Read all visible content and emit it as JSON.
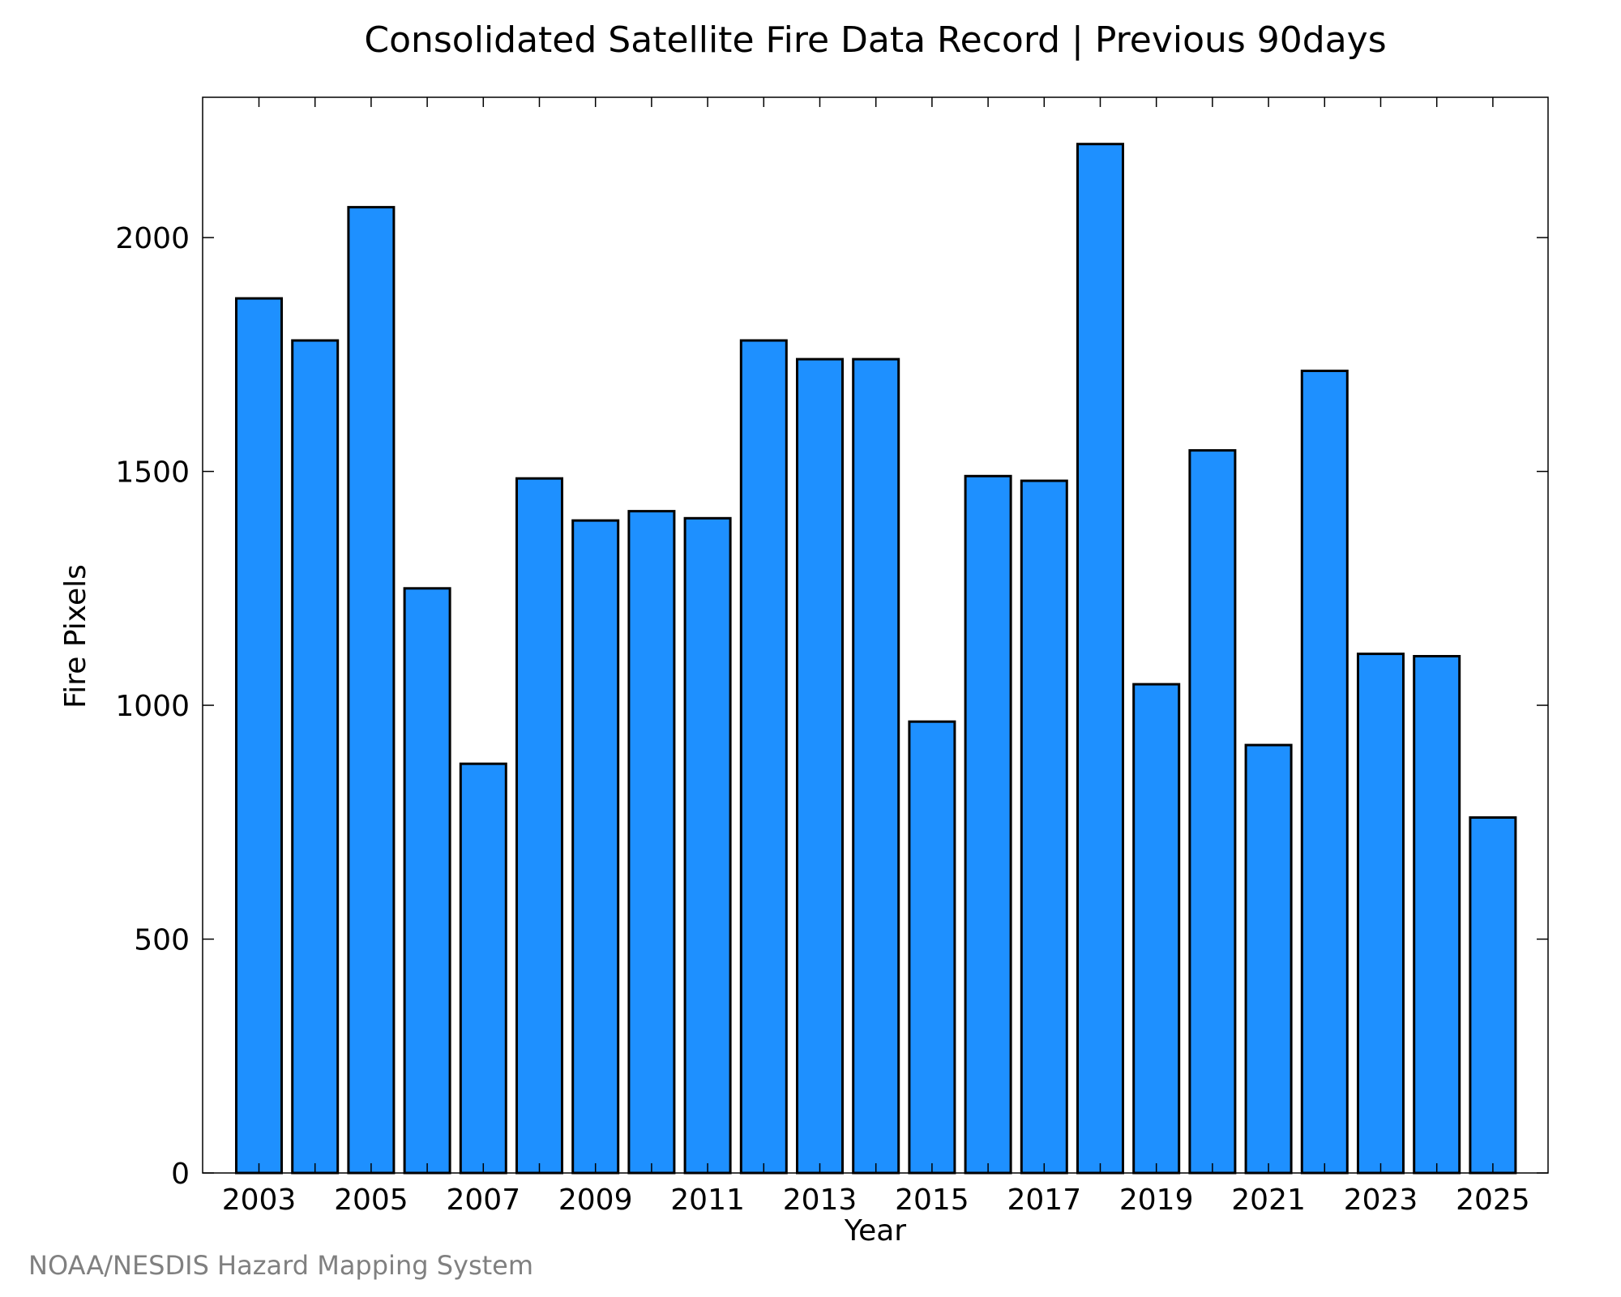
{
  "chart_data": {
    "type": "bar",
    "title": "Consolidated Satellite Fire Data Record | Previous 90days",
    "xlabel": "Year",
    "ylabel": "Fire Pixels",
    "categories": [
      "2003",
      "2004",
      "2005",
      "2006",
      "2007",
      "2008",
      "2009",
      "2010",
      "2011",
      "2012",
      "2013",
      "2014",
      "2015",
      "2016",
      "2017",
      "2018",
      "2019",
      "2020",
      "2021",
      "2022",
      "2023",
      "2024",
      "2025"
    ],
    "x_tick_labels": [
      "2003",
      "2005",
      "2007",
      "2009",
      "2011",
      "2013",
      "2015",
      "2017",
      "2019",
      "2021",
      "2023",
      "2025"
    ],
    "y_ticks": [
      0,
      500,
      1000,
      1500,
      2000
    ],
    "values": [
      1870,
      1780,
      2065,
      1250,
      875,
      1485,
      1395,
      1415,
      1400,
      1780,
      1740,
      1740,
      965,
      1490,
      1480,
      2200,
      1045,
      1545,
      915,
      1715,
      1110,
      1105,
      760
    ],
    "ylim": [
      0,
      2300
    ],
    "grid": false,
    "bar_color": "#1e90ff",
    "edge_color": "#000000"
  },
  "credit": "NOAA/NESDIS Hazard Mapping System"
}
